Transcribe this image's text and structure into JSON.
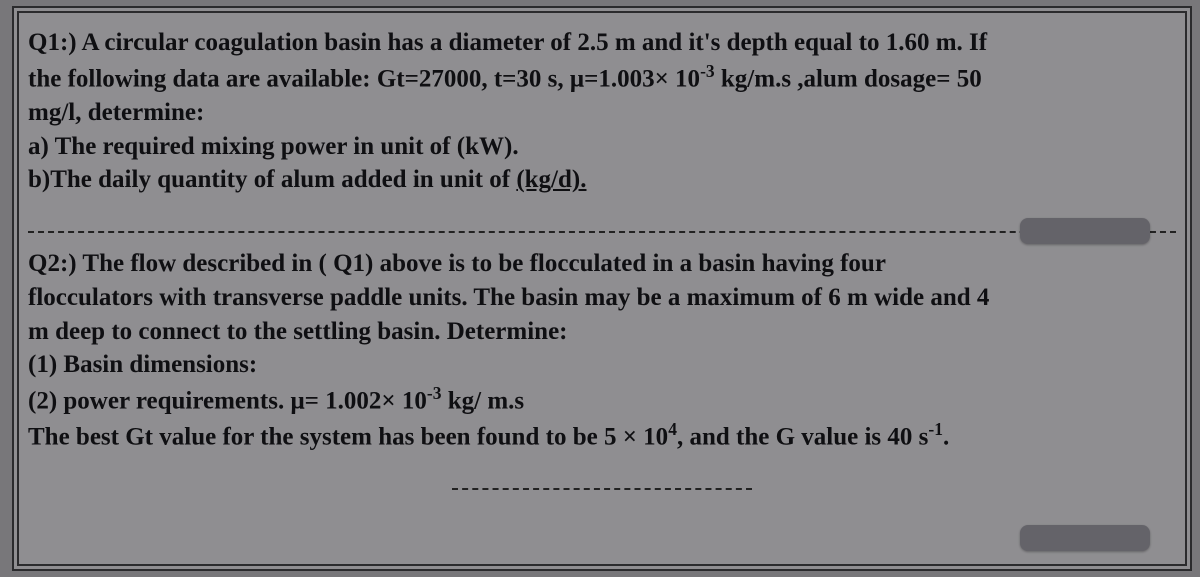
{
  "page": {
    "background_color": "#78777a",
    "paper_color": "#8f8e91",
    "border_color": "#2b2b2d",
    "text_color": "#0f0f12",
    "font_family": "Times New Roman",
    "font_size_pt": 19,
    "font_weight": "bold"
  },
  "q1": {
    "line1": "Q1:) A circular coagulation basin has a diameter of 2.5 m and it's depth equal to 1.60 m. If",
    "line2_a": "the following data are available: Gt=27000, t=30 s, μ=1.003× 10",
    "line2_sup": "-3",
    "line2_b": " kg/m.s ,alum dosage= 50",
    "line3": "mg/l, determine:",
    "a": "a) The required mixing power in unit of (kW).",
    "b_pre": "b)The daily quantity of alum added in unit of ",
    "b_under": "(kg/d)."
  },
  "q2": {
    "line1": "Q2:) The flow described in ( Q1) above is to be flocculated  in a basin having four",
    "line2": "flocculators  with transverse paddle units. The basin may be a maximum of 6 m wide and 4",
    "line3": "m deep to connect to the settling basin. Determine:",
    "item1": "(1) Basin dimensions:",
    "item2_a": "(2) power requirements. μ= 1.002× 10",
    "item2_sup": "-3",
    "item2_b": " kg/ m.s",
    "line6_a": "The best Gt value for the system has been found to be 5 × 10",
    "line6_sup1": "4",
    "line6_b": ", and the G value is 40 s",
    "line6_sup2": "-1",
    "line6_c": "."
  }
}
